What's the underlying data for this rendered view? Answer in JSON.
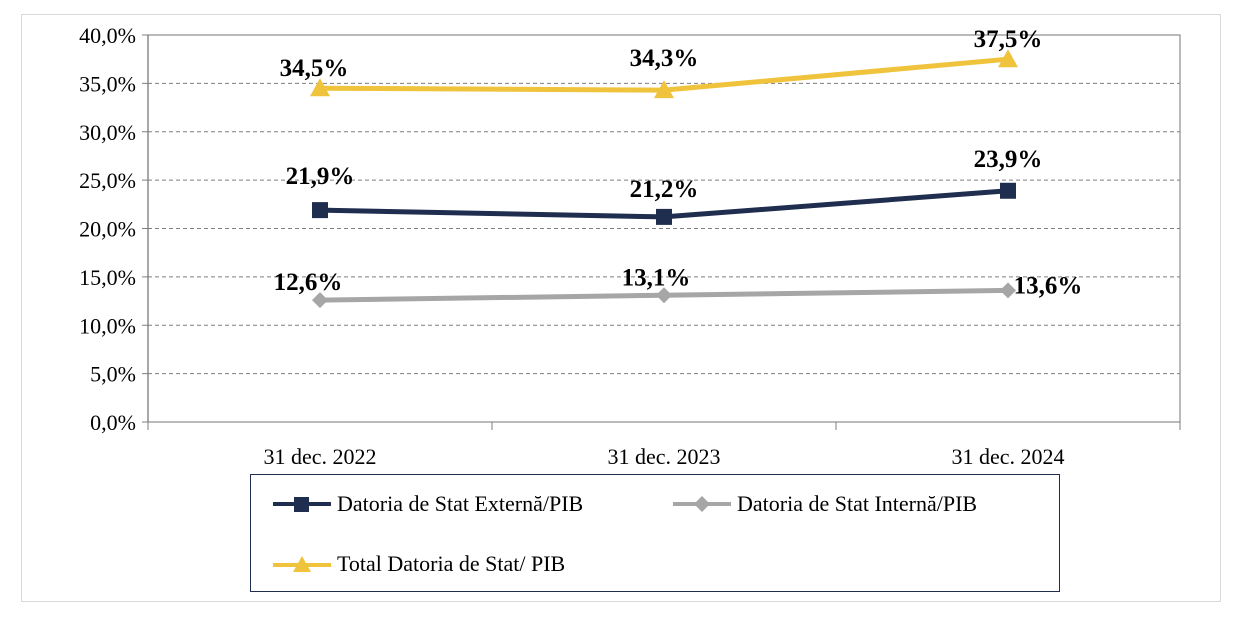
{
  "chart_data": {
    "type": "line",
    "categories": [
      "31 dec. 2022",
      "31 dec. 2023",
      "31 dec. 2024"
    ],
    "ylim": [
      0,
      40
    ],
    "ytick_values": [
      0,
      5,
      10,
      15,
      20,
      25,
      30,
      35,
      40
    ],
    "ytick_labels": [
      "0,0%",
      "5,0%",
      "10,0%",
      "15,0%",
      "20,0%",
      "25,0%",
      "30,0%",
      "35,0%",
      "40,0%"
    ],
    "grid": true,
    "legend_position": "bottom",
    "series": [
      {
        "name": "Datoria de Stat Externă/PIB",
        "values": [
          21.9,
          21.2,
          23.9
        ],
        "labels": [
          "21,9%",
          "21,2%",
          "23,9%"
        ],
        "color": "#1f2d4e",
        "marker": "square"
      },
      {
        "name": "Datoria de Stat Internă/PIB",
        "values": [
          12.6,
          13.1,
          13.6
        ],
        "labels": [
          "12,6%",
          "13,1%",
          "13,6%"
        ],
        "color": "#a6a6a6",
        "marker": "diamond"
      },
      {
        "name": "Total Datoria de Stat/ PIB",
        "values": [
          34.5,
          34.3,
          37.5
        ],
        "labels": [
          "34,5%",
          "34,3%",
          "37,5%"
        ],
        "color": "#f0c33c",
        "marker": "triangle"
      }
    ]
  },
  "legend": {
    "items": [
      {
        "label": "Datoria de Stat Externă/PIB"
      },
      {
        "label": "Datoria de Stat Internă/PIB"
      },
      {
        "label": "Total Datoria de Stat/ PIB"
      }
    ]
  }
}
